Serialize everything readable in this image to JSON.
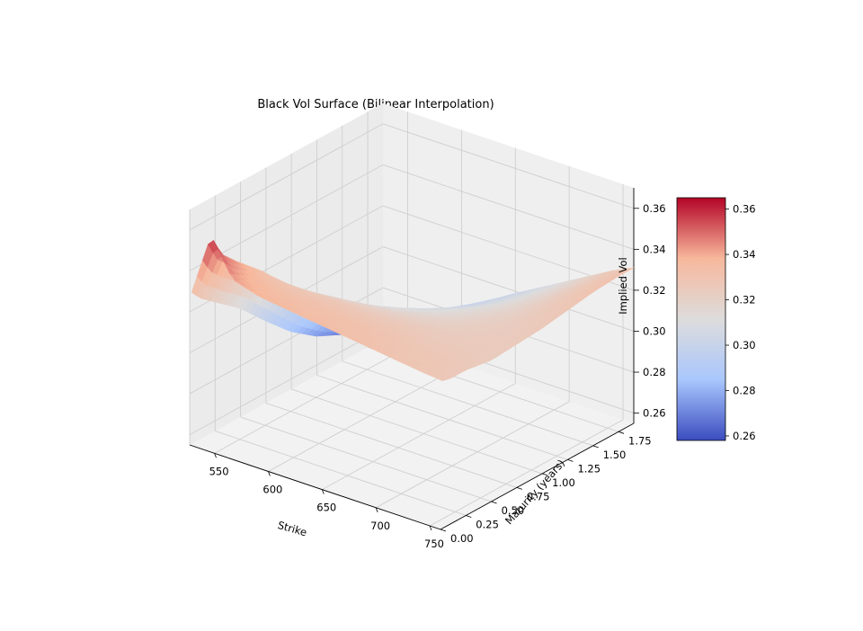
{
  "chart_data": {
    "type": "surface",
    "title": "Black Vol Surface (Bilinear Interpolation)",
    "xlabel": "Strike",
    "ylabel": "Maturity (years)",
    "zlabel": "Implied Vol",
    "x_ticks": [
      "550",
      "600",
      "650",
      "700",
      "750"
    ],
    "y_ticks": [
      "0.00",
      "0.25",
      "0.50",
      "0.75",
      "1.00",
      "1.25",
      "1.50",
      "1.75"
    ],
    "z_ticks": [
      "0.26",
      "0.28",
      "0.30",
      "0.32",
      "0.34",
      "0.36"
    ],
    "colorbar_ticks": [
      "0.26",
      "0.28",
      "0.30",
      "0.32",
      "0.34",
      "0.36"
    ],
    "xlim": [
      527,
      760
    ],
    "ylim": [
      0,
      1.9
    ],
    "zlim": [
      0.255,
      0.37
    ],
    "colormap": "coolwarm",
    "colormap_stops": [
      "#3b4cc0",
      "#aac7fd",
      "#dddcdc",
      "#f7b89c",
      "#b40426"
    ],
    "vmin": 0.258,
    "vmax": 0.365,
    "grid": true,
    "strikes": [
      527,
      545,
      565,
      590,
      620,
      650,
      680,
      710,
      740,
      760
    ],
    "maturities": [
      0.02,
      0.1,
      0.25,
      0.5,
      0.75,
      1.0,
      1.25,
      1.5,
      1.75,
      1.9
    ],
    "vol_grid": [
      [
        0.329,
        0.36,
        0.342,
        0.338,
        0.336,
        0.334,
        0.332,
        0.33,
        0.328,
        0.327
      ],
      [
        0.324,
        0.35,
        0.34,
        0.336,
        0.334,
        0.333,
        0.331,
        0.329,
        0.328,
        0.326
      ],
      [
        0.318,
        0.342,
        0.336,
        0.333,
        0.332,
        0.331,
        0.33,
        0.328,
        0.327,
        0.326
      ],
      [
        0.308,
        0.33,
        0.328,
        0.327,
        0.327,
        0.326,
        0.326,
        0.325,
        0.325,
        0.324
      ],
      [
        0.295,
        0.315,
        0.316,
        0.318,
        0.319,
        0.32,
        0.321,
        0.323,
        0.324,
        0.325
      ],
      [
        0.283,
        0.298,
        0.304,
        0.308,
        0.311,
        0.314,
        0.317,
        0.321,
        0.324,
        0.326
      ],
      [
        0.274,
        0.285,
        0.293,
        0.299,
        0.304,
        0.309,
        0.314,
        0.319,
        0.325,
        0.328
      ],
      [
        0.268,
        0.276,
        0.284,
        0.291,
        0.297,
        0.304,
        0.311,
        0.318,
        0.326,
        0.33
      ],
      [
        0.264,
        0.27,
        0.277,
        0.284,
        0.292,
        0.301,
        0.309,
        0.317,
        0.326,
        0.331
      ],
      [
        0.262,
        0.266,
        0.273,
        0.281,
        0.289,
        0.299,
        0.308,
        0.317,
        0.326,
        0.331
      ]
    ]
  }
}
